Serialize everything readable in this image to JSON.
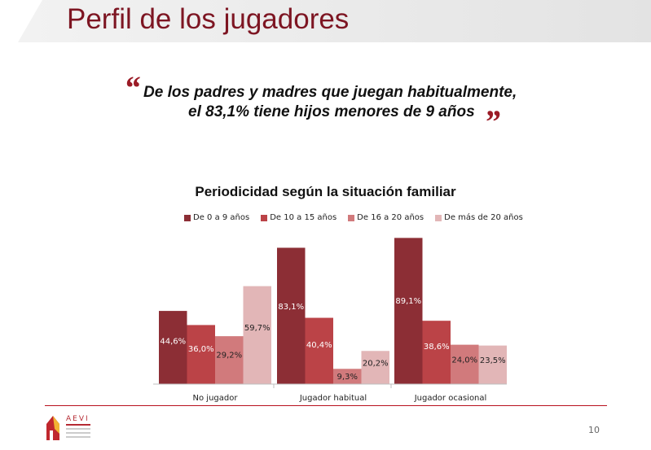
{
  "page_title": "Perfil de los jugadores",
  "quote": {
    "open_mark": "“",
    "line1": "De los padres y madres que juegan habitualmente,",
    "line2": "el 83,1% tiene hijos menores de 9 años",
    "close_mark": "”"
  },
  "logo": {
    "text": "AEVI"
  },
  "page_number": "10",
  "colors": {
    "title": "#7d1522",
    "series": [
      "#8c2e35",
      "#bb4347",
      "#d17a7c",
      "#e2b6b7"
    ]
  },
  "chart_data": {
    "type": "bar",
    "title": "Periodicidad según la situación familiar",
    "categories": [
      "No jugador",
      "Jugador habitual",
      "Jugador ocasional"
    ],
    "series": [
      {
        "name": "De 0 a 9 años",
        "values": [
          44.6,
          83.1,
          89.1
        ],
        "labels": [
          "44,6%",
          "83,1%",
          "89,1%"
        ]
      },
      {
        "name": "De 10 a 15 años",
        "values": [
          36.0,
          40.4,
          38.6
        ],
        "labels": [
          "36,0%",
          "40,4%",
          "38,6%"
        ]
      },
      {
        "name": "De 16 a 20 años",
        "values": [
          29.2,
          9.3,
          24.0
        ],
        "labels": [
          "29,2%",
          "9,3%",
          "24,0%"
        ]
      },
      {
        "name": "De más de 20 años",
        "values": [
          59.7,
          20.2,
          23.5
        ],
        "labels": [
          "59,7%",
          "20,2%",
          "23,5%"
        ]
      }
    ],
    "ylim": [
      0,
      100
    ],
    "legend_position": "top",
    "grid": false
  }
}
